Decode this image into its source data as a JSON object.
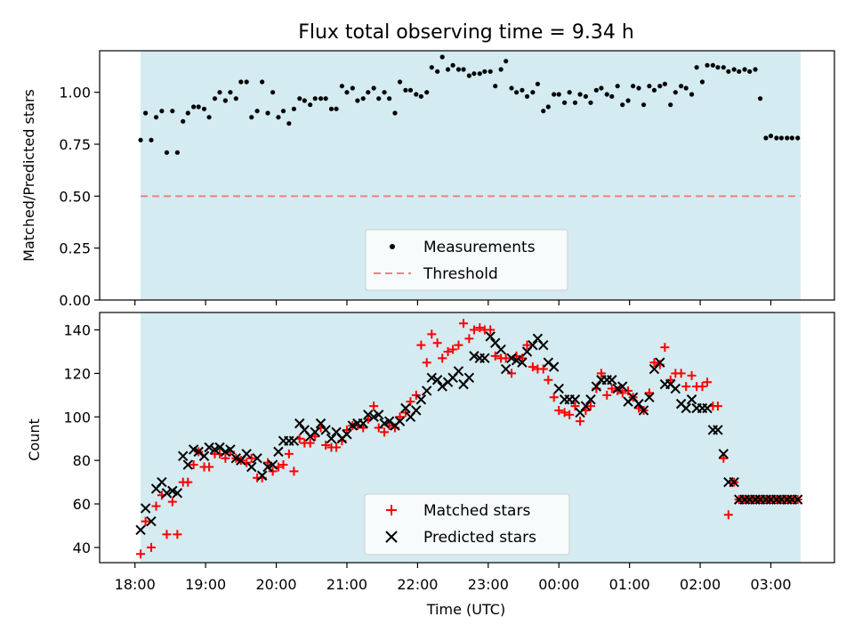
{
  "chart_data": [
    {
      "type": "scatter",
      "title": "Flux total observing time = 9.34 h",
      "xlabel": "",
      "ylabel": "Matched/Predicted stars",
      "ylim": [
        0,
        1.2
      ],
      "yticks": [
        0.0,
        0.25,
        0.5,
        0.75,
        1.0
      ],
      "ytick_labels": [
        "0.00",
        "0.25",
        "0.50",
        "0.75",
        "1.00"
      ],
      "x_unit": "hours since 18:00 UTC",
      "xlim": [
        -0.5,
        9.9
      ],
      "shaded_interval": [
        0.08,
        9.42
      ],
      "shade_color": "#d4ebf1",
      "legend_position": "lower center",
      "series": [
        {
          "name": "Measurements",
          "marker": "dot",
          "color": "#000000",
          "x": [
            0.08,
            0.15,
            0.23,
            0.3,
            0.38,
            0.45,
            0.53,
            0.6,
            0.68,
            0.75,
            0.83,
            0.9,
            0.98,
            1.05,
            1.13,
            1.2,
            1.28,
            1.35,
            1.43,
            1.5,
            1.58,
            1.65,
            1.73,
            1.8,
            1.88,
            1.95,
            2.03,
            2.1,
            2.18,
            2.25,
            2.33,
            2.4,
            2.48,
            2.55,
            2.63,
            2.7,
            2.78,
            2.85,
            2.93,
            3.0,
            3.08,
            3.15,
            3.23,
            3.3,
            3.38,
            3.45,
            3.53,
            3.6,
            3.68,
            3.75,
            3.83,
            3.9,
            3.98,
            4.05,
            4.13,
            4.2,
            4.28,
            4.35,
            4.43,
            4.5,
            4.58,
            4.65,
            4.73,
            4.8,
            4.88,
            4.95,
            5.03,
            5.1,
            5.18,
            5.25,
            5.33,
            5.4,
            5.48,
            5.55,
            5.63,
            5.7,
            5.78,
            5.85,
            5.93,
            6.0,
            6.08,
            6.15,
            6.23,
            6.3,
            6.38,
            6.45,
            6.53,
            6.6,
            6.68,
            6.75,
            6.83,
            6.9,
            6.98,
            7.05,
            7.13,
            7.2,
            7.28,
            7.35,
            7.43,
            7.5,
            7.58,
            7.65,
            7.73,
            7.8,
            7.88,
            7.95,
            8.03,
            8.1,
            8.18,
            8.25,
            8.33,
            8.4,
            8.48,
            8.55,
            8.63,
            8.7,
            8.78,
            8.85,
            8.93,
            9.0,
            9.08,
            9.15,
            9.23,
            9.3,
            9.38,
            9.45
          ],
          "y": [
            0.77,
            0.9,
            0.77,
            0.88,
            0.91,
            0.71,
            0.91,
            0.71,
            0.86,
            0.9,
            0.93,
            0.93,
            0.92,
            0.88,
            0.97,
            1.0,
            0.96,
            1.0,
            0.97,
            1.05,
            1.05,
            0.88,
            0.91,
            1.05,
            0.9,
            1.0,
            0.88,
            0.91,
            0.85,
            0.92,
            0.97,
            0.96,
            0.94,
            0.97,
            0.97,
            0.97,
            0.92,
            0.92,
            1.03,
            1.0,
            1.02,
            0.96,
            0.97,
            1.0,
            1.02,
            0.97,
            1.0,
            0.97,
            0.9,
            1.05,
            1.01,
            1.01,
            0.99,
            0.98,
            1.0,
            1.12,
            1.1,
            1.17,
            1.11,
            1.13,
            1.11,
            1.11,
            1.08,
            1.09,
            1.09,
            1.1,
            1.1,
            1.03,
            1.11,
            1.15,
            1.02,
            1.0,
            1.01,
            0.98,
            1.0,
            1.04,
            0.91,
            0.93,
            0.99,
            0.99,
            0.95,
            1.0,
            0.95,
            0.99,
            0.98,
            0.95,
            1.01,
            1.02,
            0.99,
            0.98,
            1.03,
            0.94,
            0.96,
            1.03,
            1.02,
            0.94,
            1.03,
            1.01,
            1.03,
            1.04,
            0.94,
            1.0,
            1.03,
            1.02,
            0.99,
            1.12,
            1.05,
            1.13,
            1.13,
            1.12,
            1.12,
            1.1,
            1.11,
            1.1,
            1.11,
            1.1,
            1.11,
            0.97,
            0.78,
            0.79,
            0.78,
            0.78,
            0.78,
            0.78,
            0.78,
            0.78
          ]
        },
        {
          "name": "Threshold",
          "marker": "dashed-line",
          "color": "#f08080",
          "y": 0.5
        }
      ]
    },
    {
      "type": "scatter",
      "title": "",
      "xlabel": "Time (UTC)",
      "ylabel": "Count",
      "ylim": [
        33,
        148
      ],
      "yticks": [
        40,
        60,
        80,
        100,
        120,
        140
      ],
      "ytick_labels": [
        "40",
        "60",
        "80",
        "100",
        "120",
        "140"
      ],
      "x_unit": "hours since 18:00 UTC",
      "xlim": [
        -0.5,
        9.9
      ],
      "xticks": [
        0,
        1,
        2,
        3,
        4,
        5,
        6,
        7,
        8,
        9
      ],
      "xtick_labels": [
        "18:00",
        "19:00",
        "20:00",
        "21:00",
        "22:00",
        "23:00",
        "00:00",
        "01:00",
        "02:00",
        "03:00"
      ],
      "shaded_interval": [
        0.08,
        9.42
      ],
      "shade_color": "#d4ebf1",
      "legend_position": "lower center",
      "series": [
        {
          "name": "Matched stars",
          "marker": "plus",
          "color": "#ff0000",
          "x": [
            0.08,
            0.15,
            0.23,
            0.3,
            0.38,
            0.45,
            0.53,
            0.6,
            0.68,
            0.75,
            0.83,
            0.9,
            0.98,
            1.05,
            1.13,
            1.2,
            1.28,
            1.35,
            1.43,
            1.5,
            1.58,
            1.65,
            1.73,
            1.8,
            1.88,
            1.95,
            2.03,
            2.1,
            2.18,
            2.25,
            2.33,
            2.4,
            2.48,
            2.55,
            2.63,
            2.7,
            2.78,
            2.85,
            2.93,
            3.0,
            3.08,
            3.15,
            3.23,
            3.3,
            3.38,
            3.45,
            3.53,
            3.6,
            3.68,
            3.75,
            3.83,
            3.9,
            3.98,
            4.05,
            4.13,
            4.2,
            4.28,
            4.35,
            4.43,
            4.5,
            4.58,
            4.65,
            4.73,
            4.8,
            4.88,
            4.95,
            5.03,
            5.1,
            5.18,
            5.25,
            5.33,
            5.4,
            5.48,
            5.55,
            5.63,
            5.7,
            5.78,
            5.85,
            5.93,
            6.0,
            6.08,
            6.15,
            6.23,
            6.3,
            6.38,
            6.45,
            6.53,
            6.6,
            6.68,
            6.75,
            6.83,
            6.9,
            6.98,
            7.05,
            7.13,
            7.2,
            7.28,
            7.35,
            7.43,
            7.5,
            7.58,
            7.65,
            7.73,
            7.8,
            7.88,
            7.95,
            8.03,
            8.1,
            8.18,
            8.25,
            8.33,
            8.4,
            8.48,
            8.55,
            8.63,
            8.7,
            8.78,
            8.85,
            8.93,
            9.0,
            9.08,
            9.15,
            9.23,
            9.3,
            9.38,
            9.45
          ],
          "y": [
            37,
            52,
            40,
            59,
            64,
            46,
            61,
            46,
            70,
            70,
            78,
            84,
            77,
            77,
            83,
            83,
            81,
            84,
            81,
            80,
            79,
            81,
            72,
            72,
            79,
            75,
            77,
            78,
            83,
            75,
            90,
            88,
            88,
            91,
            95,
            87,
            86,
            86,
            89,
            94,
            96,
            96,
            95,
            99,
            105,
            95,
            93,
            96,
            95,
            100,
            102,
            107,
            110,
            133,
            125,
            138,
            134,
            127,
            130,
            131,
            133,
            143,
            136,
            140,
            141,
            140,
            140,
            128,
            127,
            127,
            120,
            128,
            127,
            133,
            123,
            122,
            122,
            117,
            109,
            103,
            102,
            101,
            105,
            98,
            103,
            105,
            113,
            120,
            110,
            113,
            112,
            111,
            112,
            109,
            104,
            103,
            111,
            125,
            124,
            132,
            117,
            120,
            120,
            114,
            119,
            114,
            114,
            116,
            105,
            105,
            81,
            55,
            70,
            62,
            62,
            62,
            62,
            62,
            62,
            62,
            62,
            62,
            62,
            62,
            62,
            62
          ]
        },
        {
          "name": "Predicted stars",
          "marker": "x",
          "color": "#000000",
          "x": [
            0.08,
            0.15,
            0.23,
            0.3,
            0.38,
            0.45,
            0.53,
            0.6,
            0.68,
            0.75,
            0.83,
            0.9,
            0.98,
            1.05,
            1.13,
            1.2,
            1.28,
            1.35,
            1.43,
            1.5,
            1.58,
            1.65,
            1.73,
            1.8,
            1.88,
            1.95,
            2.03,
            2.1,
            2.18,
            2.25,
            2.33,
            2.4,
            2.48,
            2.55,
            2.63,
            2.7,
            2.78,
            2.85,
            2.93,
            3.0,
            3.08,
            3.15,
            3.23,
            3.3,
            3.38,
            3.45,
            3.53,
            3.6,
            3.68,
            3.75,
            3.83,
            3.9,
            3.98,
            4.05,
            4.13,
            4.2,
            4.28,
            4.35,
            4.43,
            4.5,
            4.58,
            4.65,
            4.73,
            4.8,
            4.88,
            4.95,
            5.03,
            5.1,
            5.18,
            5.25,
            5.33,
            5.4,
            5.48,
            5.55,
            5.63,
            5.7,
            5.78,
            5.85,
            5.93,
            6.0,
            6.08,
            6.15,
            6.23,
            6.3,
            6.38,
            6.45,
            6.53,
            6.6,
            6.68,
            6.75,
            6.83,
            6.9,
            6.98,
            7.05,
            7.13,
            7.2,
            7.28,
            7.35,
            7.43,
            7.5,
            7.58,
            7.65,
            7.73,
            7.8,
            7.88,
            7.95,
            8.03,
            8.1,
            8.18,
            8.25,
            8.33,
            8.4,
            8.48,
            8.55,
            8.63,
            8.7,
            8.78,
            8.85,
            8.93,
            9.0,
            9.08,
            9.15,
            9.23,
            9.3,
            9.38,
            9.45
          ],
          "y": [
            48,
            58,
            52,
            67,
            70,
            65,
            66,
            65,
            82,
            78,
            85,
            84,
            82,
            86,
            85,
            86,
            84,
            85,
            81,
            80,
            83,
            77,
            81,
            73,
            77,
            78,
            84,
            89,
            89,
            89,
            97,
            94,
            91,
            93,
            97,
            94,
            90,
            93,
            90,
            92,
            96,
            97,
            97,
            101,
            100,
            101,
            97,
            98,
            96,
            98,
            104,
            100,
            103,
            108,
            112,
            118,
            117,
            114,
            116,
            118,
            121,
            115,
            118,
            128,
            127,
            127,
            137,
            134,
            131,
            122,
            127,
            126,
            125,
            130,
            133,
            136,
            133,
            125,
            123,
            113,
            108,
            108,
            108,
            102,
            105,
            108,
            114,
            117,
            117,
            117,
            113,
            114,
            107,
            109,
            106,
            103,
            109,
            122,
            125,
            115,
            115,
            113,
            106,
            104,
            108,
            104,
            104,
            104,
            94,
            94,
            83,
            70,
            70,
            62,
            62,
            62,
            62,
            62,
            62,
            62,
            62,
            62,
            62,
            62,
            62,
            62
          ]
        }
      ]
    }
  ]
}
